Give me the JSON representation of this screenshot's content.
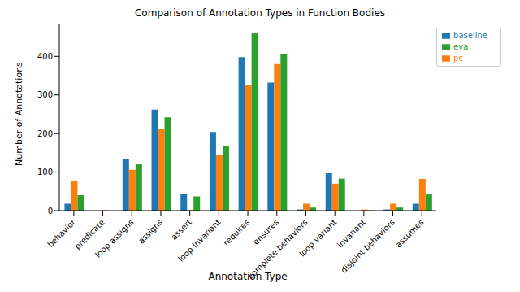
{
  "chart_data": {
    "type": "bar",
    "title": "Comparison of Annotation Types in Function Bodies",
    "x_label": "Annotation Type",
    "y_label": "Number of Annotations",
    "categories": [
      "behavior",
      "predicate",
      "loop assigns",
      "assigns",
      "assert",
      "loop invariant",
      "requires",
      "ensures",
      "complete behaviors",
      "loop variant",
      "invariant",
      "disjoint behaviors",
      "assumes"
    ],
    "series": [
      {
        "name": "baseline",
        "color": "#1f77b4",
        "values": [
          18,
          0,
          133,
          262,
          43,
          204,
          398,
          332,
          3,
          97,
          0,
          3,
          18
        ]
      },
      {
        "name": "pc",
        "color": "#ff7f0e",
        "values": [
          78,
          1,
          106,
          212,
          2,
          145,
          326,
          380,
          18,
          70,
          3,
          18,
          82
        ]
      },
      {
        "name": "eva",
        "color": "#2ca02c",
        "values": [
          40,
          0,
          120,
          242,
          37,
          168,
          462,
          406,
          8,
          83,
          1,
          8,
          42
        ]
      }
    ],
    "ylim": [
      0,
      485
    ],
    "yticks": [
      0,
      100,
      200,
      300,
      400
    ],
    "grid": false,
    "legend": "upper right"
  }
}
